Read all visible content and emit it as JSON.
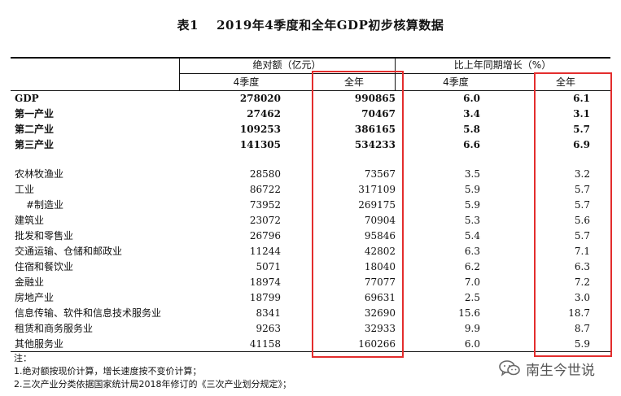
{
  "table": {
    "label": "表1",
    "title": "2019年4季度和全年GDP初步核算数据",
    "header": {
      "group_abs": "绝对额（亿元）",
      "group_growth": "比上年同期增长（%）",
      "q4": "4季度",
      "year": "全年",
      "q4_growth": "4季度",
      "year_growth": "全年"
    },
    "rows": [
      {
        "name": "GDP",
        "q4": "278020",
        "year": "990865",
        "q4g": "6.0",
        "yg": "6.1",
        "bold": true
      },
      {
        "name": "第一产业",
        "q4": "27462",
        "year": "70467",
        "q4g": "3.4",
        "yg": "3.1",
        "bold": true
      },
      {
        "name": "第二产业",
        "q4": "109253",
        "year": "386165",
        "q4g": "5.8",
        "yg": "5.7",
        "bold": true
      },
      {
        "name": "第三产业",
        "q4": "141305",
        "year": "534233",
        "q4g": "6.6",
        "yg": "6.9",
        "bold": true
      },
      {
        "name": "农林牧渔业",
        "q4": "28580",
        "year": "73567",
        "q4g": "3.5",
        "yg": "3.2"
      },
      {
        "name": "工业",
        "q4": "86722",
        "year": "317109",
        "q4g": "5.9",
        "yg": "5.7"
      },
      {
        "name": "#制造业",
        "q4": "73952",
        "year": "269175",
        "q4g": "5.9",
        "yg": "5.7",
        "indent": true
      },
      {
        "name": "建筑业",
        "q4": "23072",
        "year": "70904",
        "q4g": "5.3",
        "yg": "5.6"
      },
      {
        "name": "批发和零售业",
        "q4": "26796",
        "year": "95846",
        "q4g": "5.4",
        "yg": "5.7"
      },
      {
        "name": "交通运输、仓储和邮政业",
        "q4": "11244",
        "year": "42802",
        "q4g": "6.3",
        "yg": "7.1"
      },
      {
        "name": "住宿和餐饮业",
        "q4": "5071",
        "year": "18040",
        "q4g": "6.2",
        "yg": "6.3"
      },
      {
        "name": "金融业",
        "q4": "18974",
        "year": "77077",
        "q4g": "7.0",
        "yg": "7.2"
      },
      {
        "name": "房地产业",
        "q4": "18799",
        "year": "69631",
        "q4g": "2.5",
        "yg": "3.0"
      },
      {
        "name": "信息传输、软件和信息技术服务业",
        "q4": "8341",
        "year": "32690",
        "q4g": "15.6",
        "yg": "18.7"
      },
      {
        "name": "租赁和商务服务业",
        "q4": "9263",
        "year": "32933",
        "q4g": "9.9",
        "yg": "8.7"
      },
      {
        "name": "其他服务业",
        "q4": "41158",
        "year": "160266",
        "q4g": "6.0",
        "yg": "5.9"
      }
    ]
  },
  "notes": [
    "注：",
    "1.绝对额按现价计算，增长速度按不变价计算；",
    "2.三次产业分类依据国家统计局2018年修订的《三次产业划分规定》；"
  ],
  "watermark": {
    "text": "南生今世说",
    "icon": "wechat-icon"
  },
  "colors": {
    "highlight": "#e32d2d",
    "rule": "#111111"
  }
}
